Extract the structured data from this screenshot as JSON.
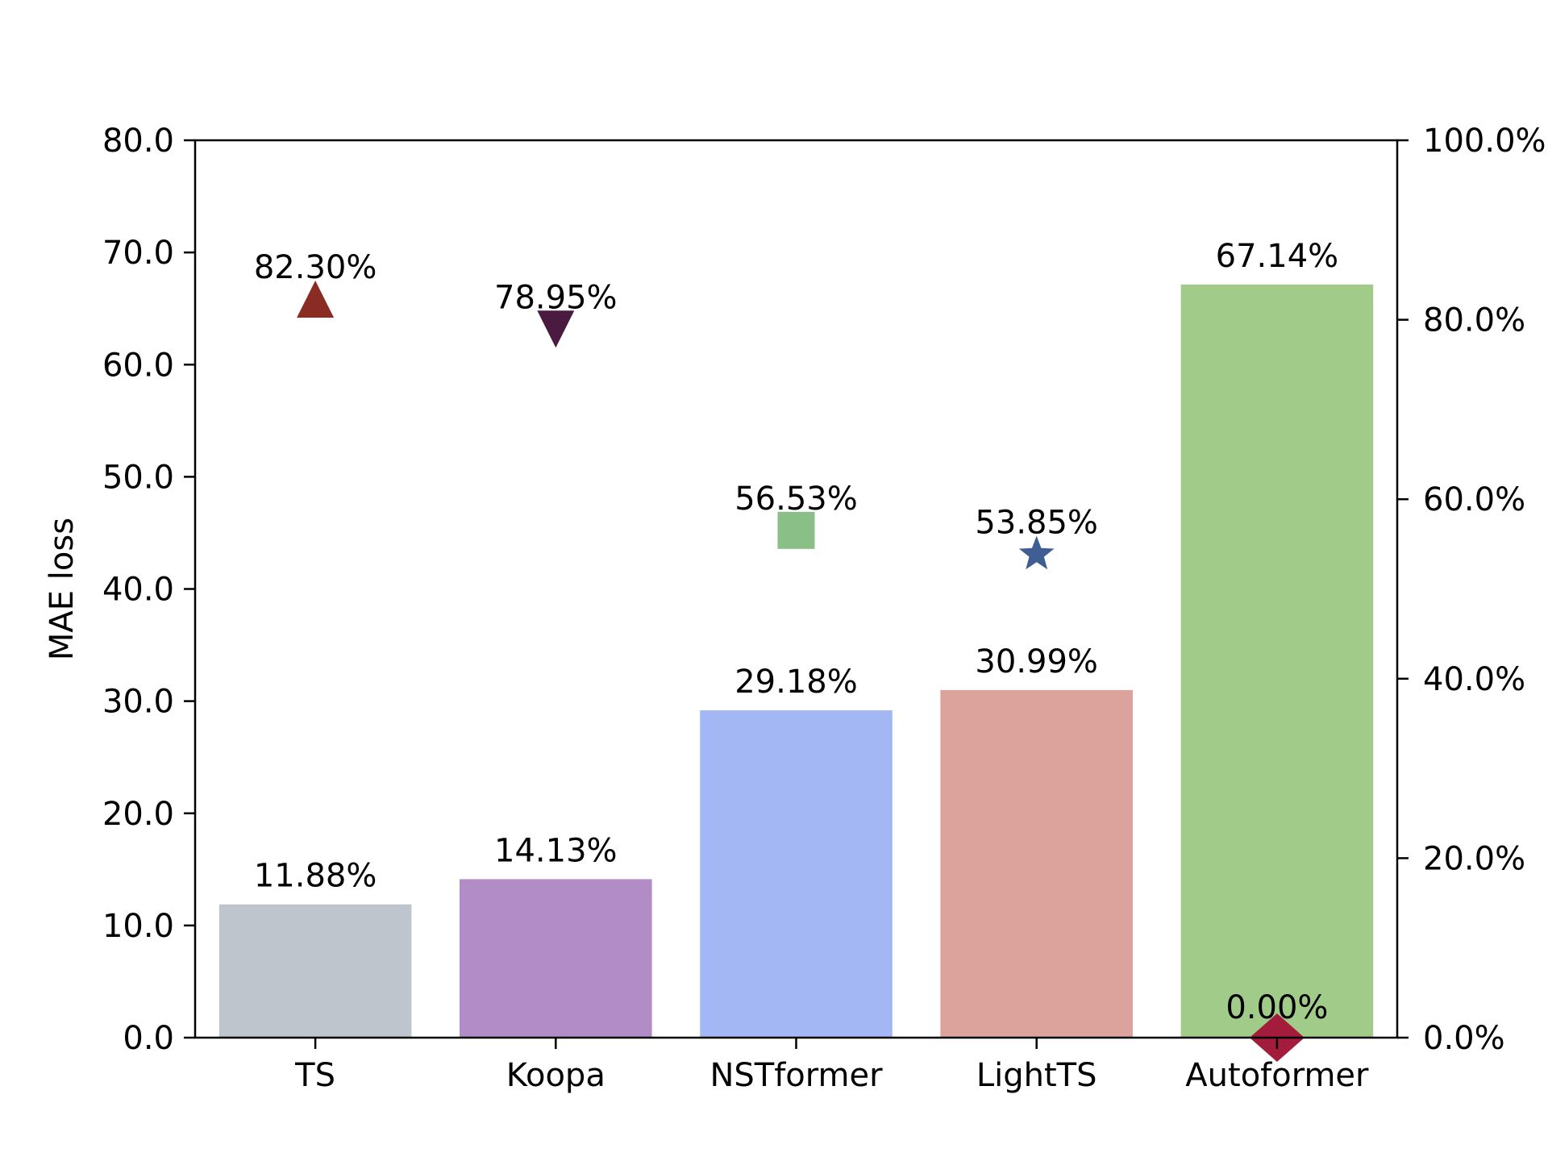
{
  "chart_data": {
    "type": "bar",
    "title": "",
    "xlabel": "",
    "ylabel": "MAE loss",
    "y2label": "",
    "categories": [
      "TS",
      "Koopa",
      "NSTformer",
      "LightTS",
      "Autoformer"
    ],
    "series": [
      {
        "kind": "bar",
        "axis": "left",
        "values": [
          11.88,
          14.13,
          29.18,
          30.99,
          67.14
        ],
        "labels": [
          "11.88%",
          "14.13%",
          "29.18%",
          "30.99%",
          "67.14%"
        ],
        "colors": [
          "#bfc5cc",
          "#b18cc7",
          "#a3b7f5",
          "#dba39b",
          "#a1cb88"
        ]
      },
      {
        "kind": "markers",
        "axis": "right",
        "values": [
          82.3,
          78.95,
          56.53,
          53.85,
          0.0
        ],
        "labels": [
          "82.30%",
          "78.95%",
          "56.53%",
          "53.85%",
          "0.00%"
        ],
        "markers": [
          "triangle-up",
          "triangle-down",
          "square",
          "star",
          "diamond"
        ],
        "colors": [
          "#8b2c24",
          "#4a1a40",
          "#8bbf88",
          "#3f5f94",
          "#a41c3c"
        ]
      }
    ],
    "ylim": [
      0,
      80
    ],
    "y2lim": [
      0,
      100
    ],
    "yticks": [
      "0.0",
      "10.0",
      "20.0",
      "30.0",
      "40.0",
      "50.0",
      "60.0",
      "70.0",
      "80.0"
    ],
    "y2ticks": [
      "0.0%",
      "20.0%",
      "40.0%",
      "60.0%",
      "80.0%",
      "100.0%"
    ],
    "grid": false,
    "legend": "none"
  }
}
